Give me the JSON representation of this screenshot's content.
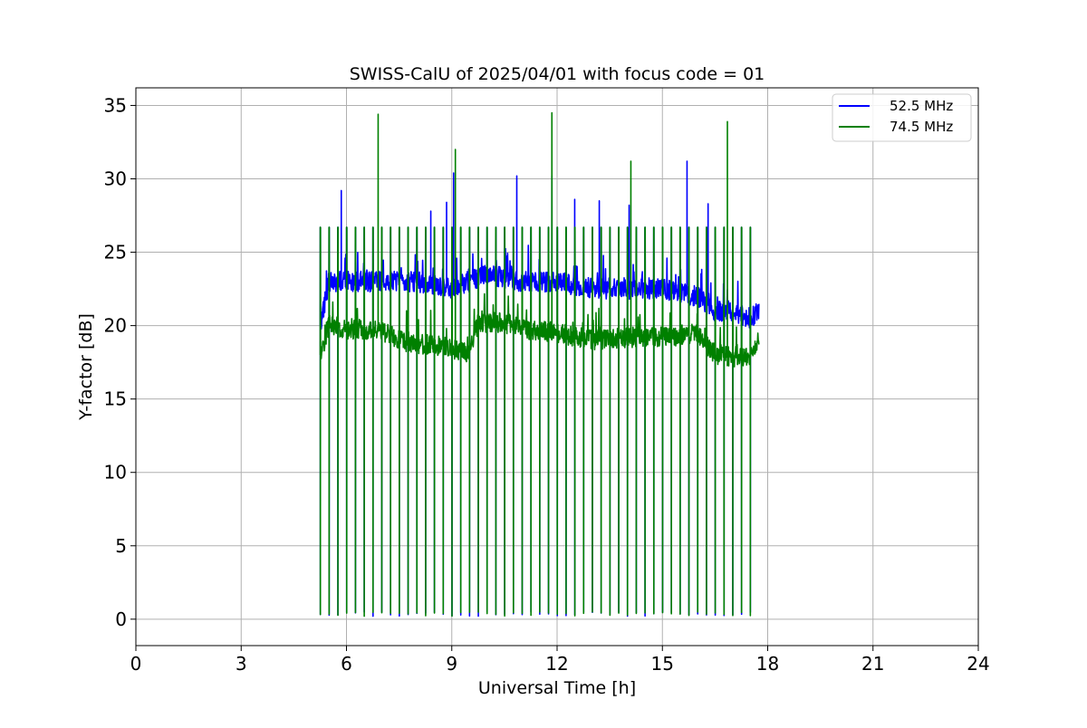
{
  "chart_data": {
    "type": "line",
    "title": "SWISS-CalU of 2025/04/01 with focus code = 01",
    "xlabel": "Universal Time [h]",
    "ylabel": "Y-factor [dB]",
    "xlim": [
      0,
      24
    ],
    "ylim": [
      -1.8,
      36.2
    ],
    "xticks": [
      0,
      3,
      6,
      9,
      12,
      15,
      18,
      21,
      24
    ],
    "xtick_labels": [
      "0",
      "3",
      "6",
      "9",
      "12",
      "15",
      "18",
      "21",
      "24"
    ],
    "yticks": [
      0,
      5,
      10,
      15,
      20,
      25,
      30,
      35
    ],
    "ytick_labels": [
      "0",
      "5",
      "10",
      "15",
      "20",
      "25",
      "30",
      "35"
    ],
    "grid": true,
    "legend_position": "top-right",
    "series": [
      {
        "name": "52.5 MHz",
        "color": "#0000ff",
        "x_start": 5.25,
        "x_end": 17.75,
        "calibration_dips_at": [
          5.25,
          5.5,
          5.75,
          6.0,
          6.25,
          6.5,
          6.75,
          7.0,
          7.25,
          7.5,
          7.75,
          8.0,
          8.25,
          8.5,
          8.75,
          9.0,
          9.25,
          9.5,
          9.75,
          10.0,
          10.25,
          10.5,
          10.75,
          11.0,
          11.25,
          11.5,
          11.75,
          12.0,
          12.25,
          12.5,
          12.75,
          13.0,
          13.25,
          13.5,
          13.75,
          14.0,
          14.25,
          14.5,
          14.75,
          15.0,
          15.25,
          15.5,
          15.75,
          16.0,
          16.25,
          16.5,
          16.75,
          17.0,
          17.25,
          17.5
        ],
        "peak_value": 26.7,
        "baseline": [
          [
            5.25,
            20.0
          ],
          [
            5.5,
            23.0
          ],
          [
            6.0,
            23.0
          ],
          [
            7.0,
            23.0
          ],
          [
            8.0,
            23.0
          ],
          [
            9.0,
            22.5
          ],
          [
            10.0,
            23.5
          ],
          [
            11.0,
            23.0
          ],
          [
            12.0,
            23.0
          ],
          [
            13.0,
            22.5
          ],
          [
            14.0,
            22.5
          ],
          [
            15.0,
            22.5
          ],
          [
            16.0,
            22.0
          ],
          [
            16.5,
            21.0
          ],
          [
            17.0,
            21.0
          ],
          [
            17.5,
            20.5
          ],
          [
            17.75,
            21.0
          ]
        ],
        "spikes": [
          [
            5.85,
            29.2
          ],
          [
            8.4,
            27.8
          ],
          [
            8.85,
            28.4
          ],
          [
            9.05,
            30.4
          ],
          [
            10.85,
            30.2
          ],
          [
            11.85,
            30.2
          ],
          [
            12.5,
            28.6
          ],
          [
            13.2,
            28.5
          ],
          [
            14.05,
            28.2
          ],
          [
            15.7,
            31.2
          ],
          [
            16.3,
            28.3
          ]
        ]
      },
      {
        "name": "74.5 MHz",
        "color": "#008000",
        "x_start": 5.25,
        "x_end": 17.75,
        "calibration_dips_at": [
          5.25,
          5.5,
          5.75,
          6.0,
          6.25,
          6.5,
          6.75,
          7.0,
          7.25,
          7.5,
          7.75,
          8.0,
          8.25,
          8.5,
          8.75,
          9.0,
          9.25,
          9.5,
          9.75,
          10.0,
          10.25,
          10.5,
          10.75,
          11.0,
          11.25,
          11.5,
          11.75,
          12.0,
          12.25,
          12.5,
          12.75,
          13.0,
          13.25,
          13.5,
          13.75,
          14.0,
          14.25,
          14.5,
          14.75,
          15.0,
          15.25,
          15.5,
          15.75,
          16.0,
          16.25,
          16.5,
          16.75,
          17.0,
          17.25,
          17.5
        ],
        "peak_value": 26.7,
        "baseline": [
          [
            5.25,
            18.0
          ],
          [
            5.5,
            20.0
          ],
          [
            6.0,
            19.8
          ],
          [
            7.0,
            19.6
          ],
          [
            7.5,
            19.0
          ],
          [
            8.0,
            18.8
          ],
          [
            9.0,
            18.5
          ],
          [
            9.5,
            18.0
          ],
          [
            9.75,
            20.2
          ],
          [
            10.5,
            20.2
          ],
          [
            11.0,
            19.8
          ],
          [
            12.0,
            19.5
          ],
          [
            13.0,
            19.0
          ],
          [
            14.0,
            19.2
          ],
          [
            15.0,
            19.2
          ],
          [
            16.0,
            19.5
          ],
          [
            16.5,
            18.0
          ],
          [
            17.0,
            17.9
          ],
          [
            17.5,
            17.8
          ],
          [
            17.75,
            19.0
          ]
        ],
        "spikes": [
          [
            6.9,
            34.4
          ],
          [
            9.1,
            32.0
          ],
          [
            11.85,
            34.5
          ],
          [
            14.1,
            31.2
          ],
          [
            16.85,
            33.9
          ]
        ]
      }
    ]
  }
}
